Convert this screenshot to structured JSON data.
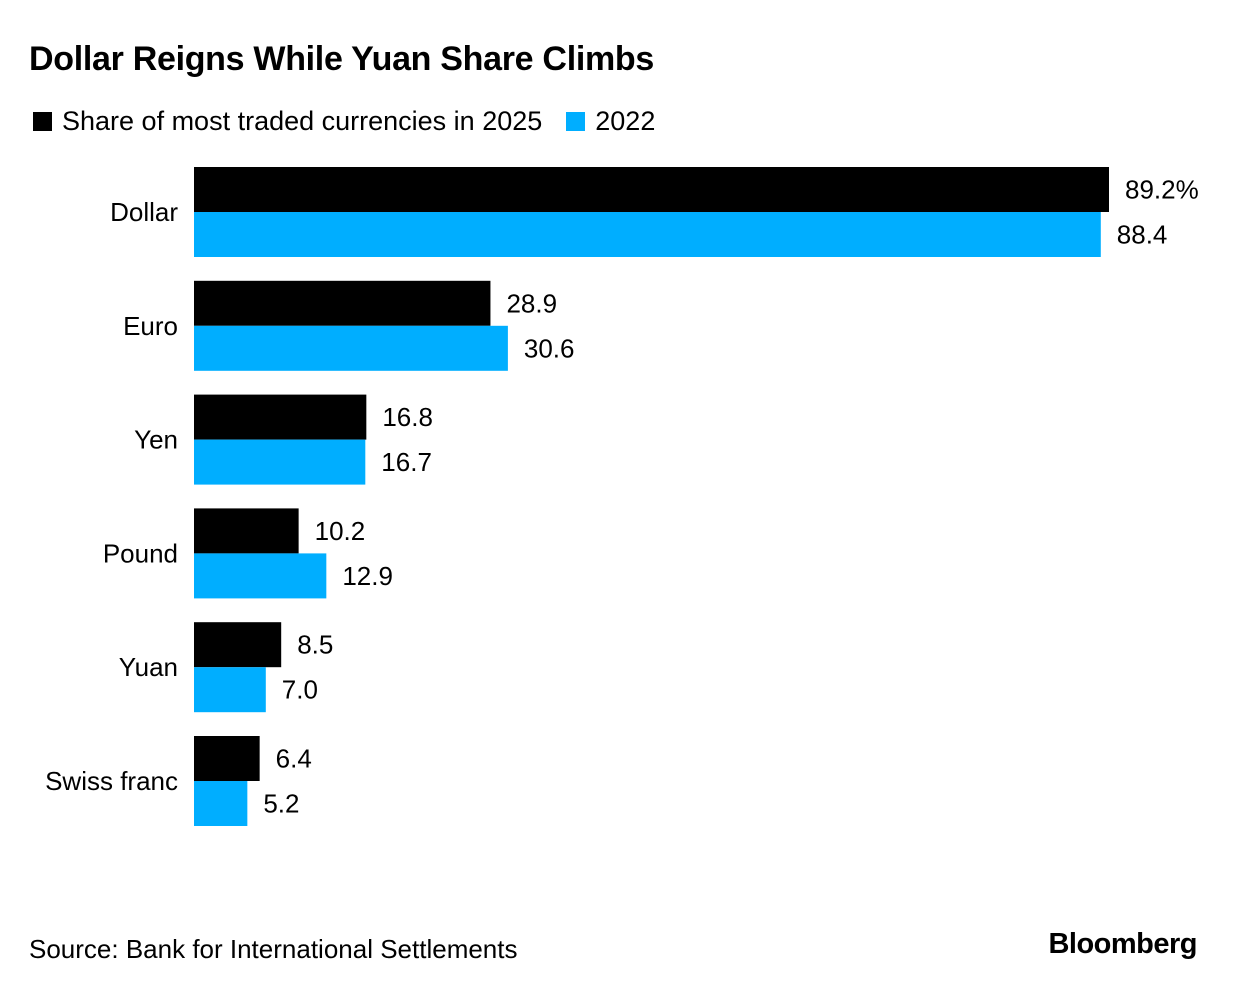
{
  "chart_data": {
    "type": "bar",
    "orientation": "horizontal",
    "title": "Dollar Reigns While Yuan Share Climbs",
    "categories": [
      "Dollar",
      "Euro",
      "Yen",
      "Pound",
      "Yuan",
      "Swiss franc"
    ],
    "series": [
      {
        "name": "Share of most traded currencies in 2025",
        "color": "#000000",
        "values": [
          89.2,
          28.9,
          16.8,
          10.2,
          8.5,
          6.4
        ],
        "labels": [
          "89.2%",
          "28.9",
          "16.8",
          "10.2",
          "8.5",
          "6.4"
        ]
      },
      {
        "name": "2022",
        "color": "#00AEFF",
        "values": [
          88.4,
          30.6,
          16.7,
          12.9,
          7.0,
          5.2
        ],
        "labels": [
          "88.4",
          "30.6",
          "16.7",
          "12.9",
          "7.0",
          "5.2"
        ]
      }
    ],
    "xlim": [
      0,
      89.2
    ],
    "grid": false,
    "legend_position": "top-left"
  },
  "footer": {
    "source": "Source: Bank for International Settlements",
    "logo": "Bloomberg"
  }
}
